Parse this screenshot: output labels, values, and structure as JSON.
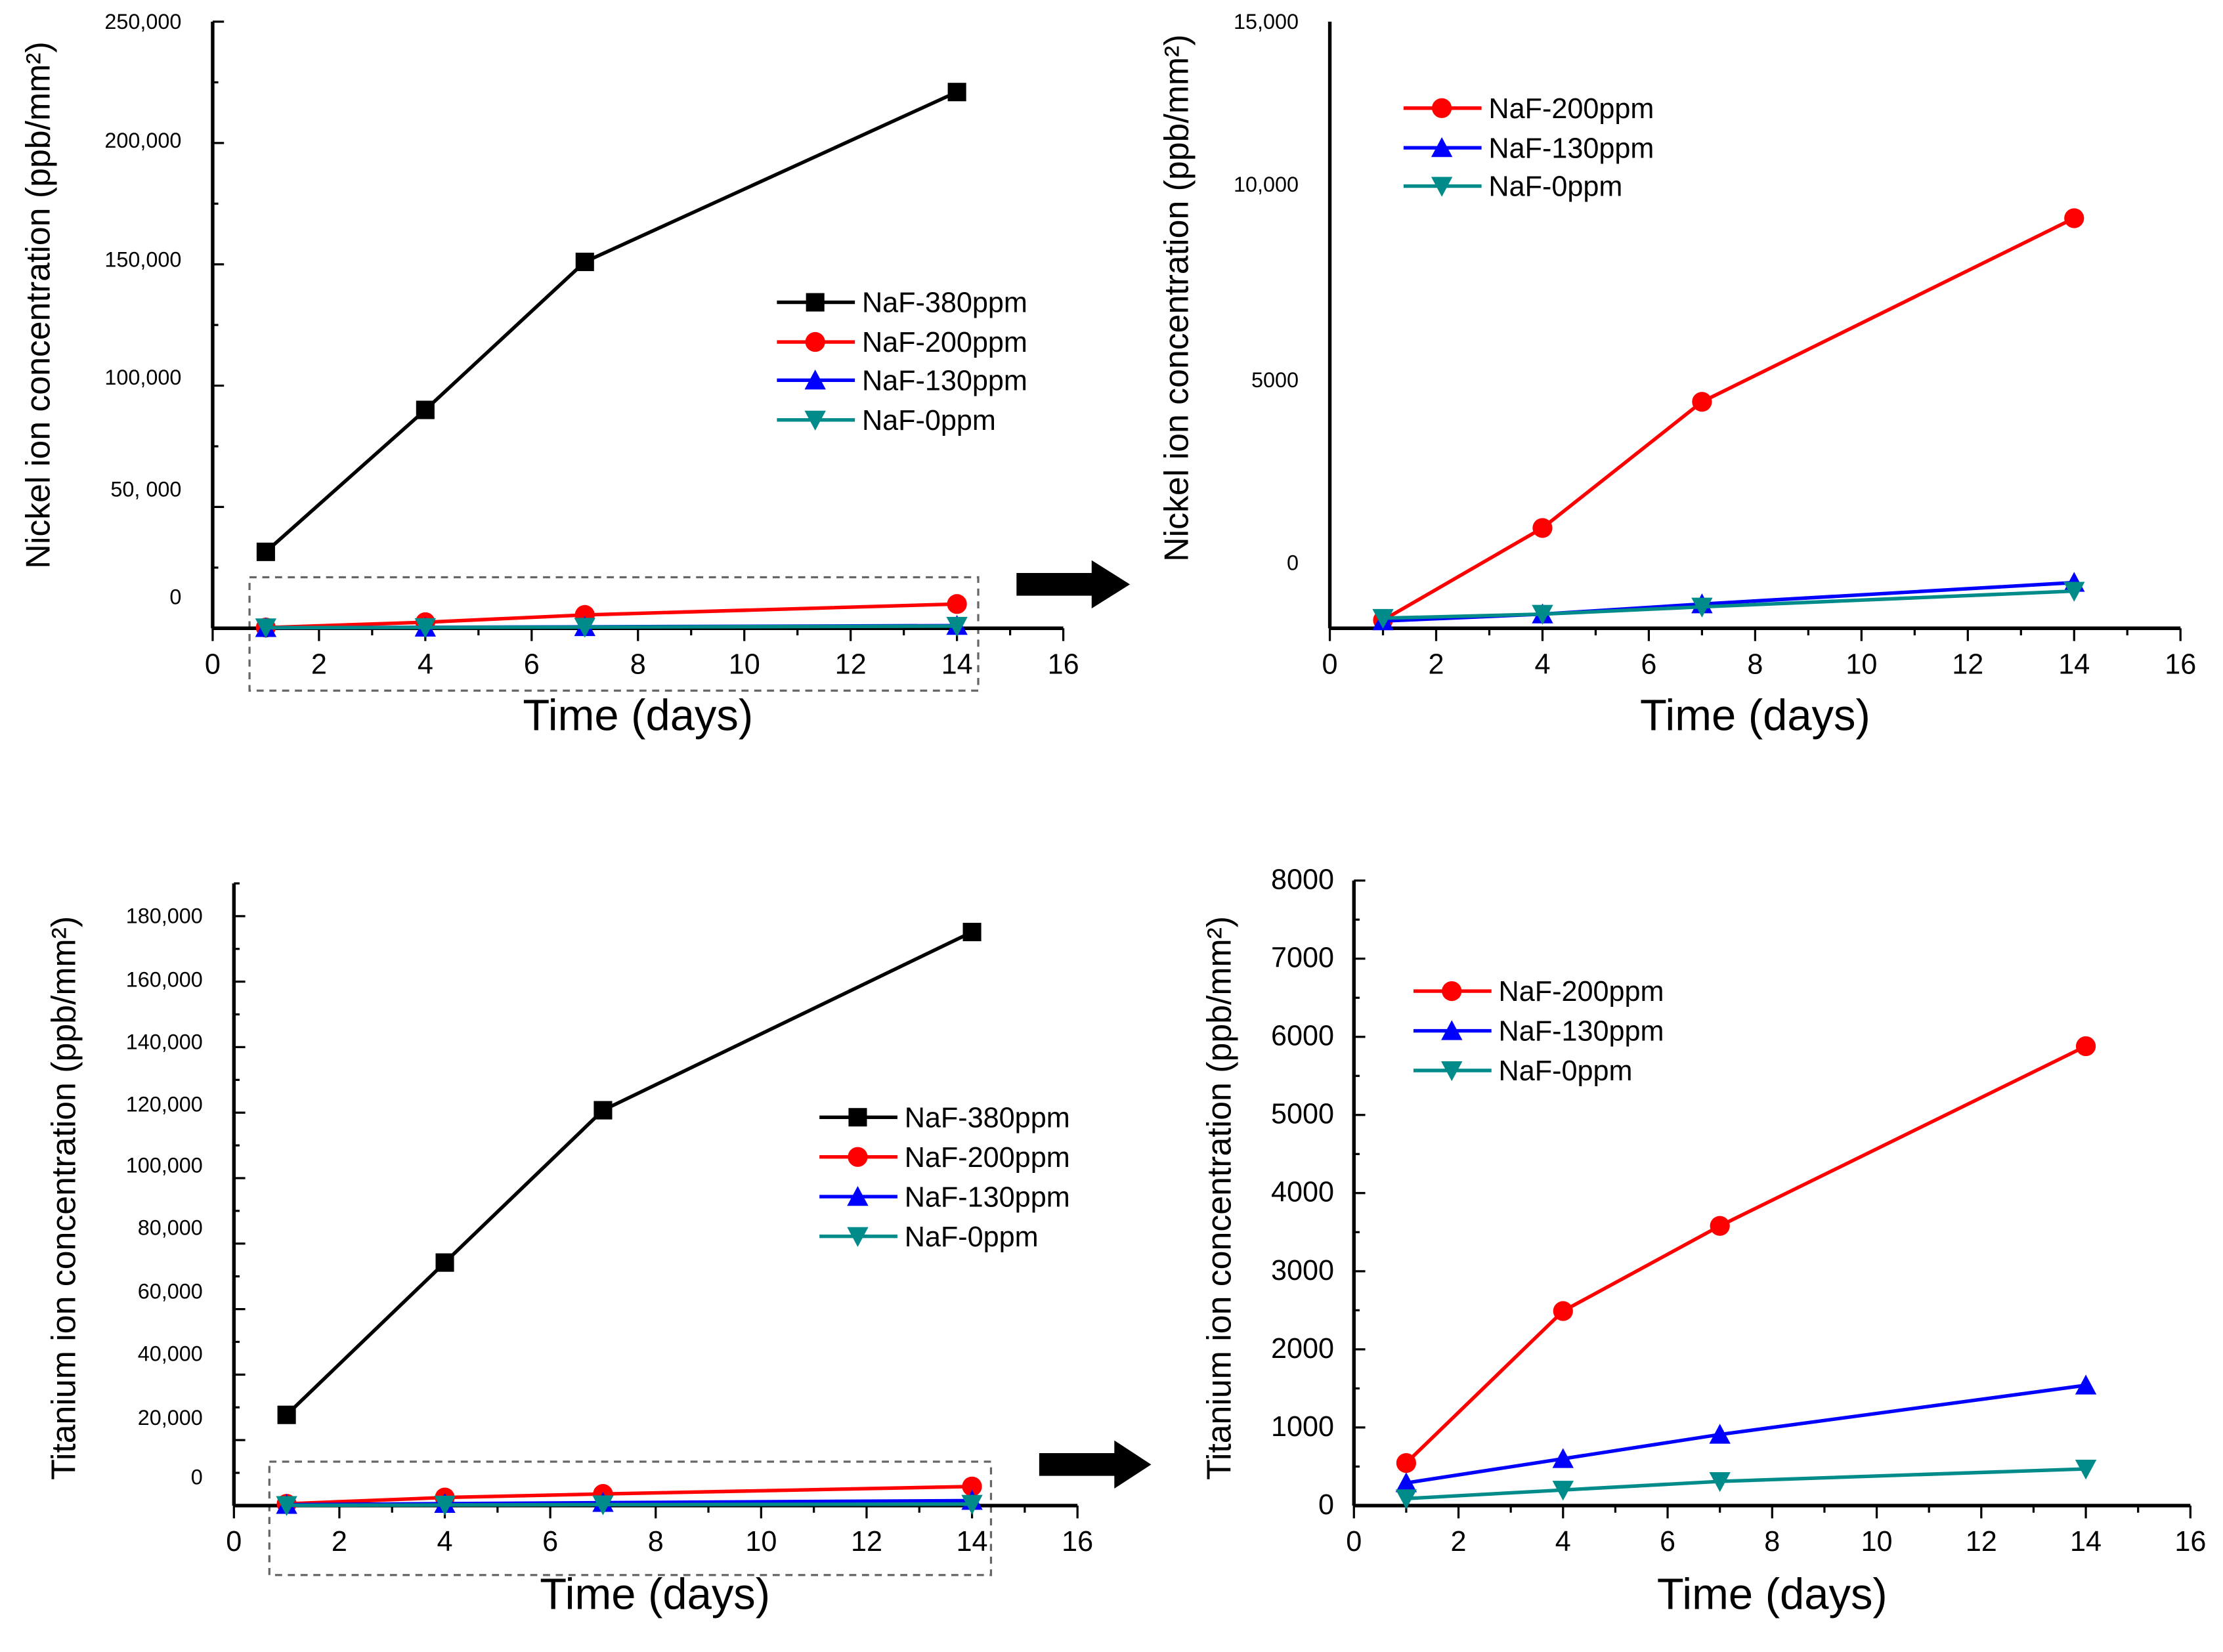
{
  "chart_data": [
    {
      "id": "ni-all",
      "type": "line",
      "xlabel": "Time (days)",
      "ylabel": "Nickel ion concentration (ppb/mm²)",
      "xlim": [
        0,
        16
      ],
      "xticks": [
        "0",
        "2",
        "4",
        "6",
        "8",
        "10",
        "12",
        "14",
        "16"
      ],
      "ylim": [
        0,
        250000
      ],
      "yticks": [
        "0",
        "50, 000",
        "100,000",
        "150,000",
        "200,000",
        "250,000"
      ],
      "grid": false,
      "legend_position": "center-right",
      "x": [
        1,
        4,
        7,
        14
      ],
      "series": [
        {
          "name": "NaF-380ppm",
          "color": "#000000",
          "marker": "square",
          "values": [
            31500,
            90000,
            151000,
            221000
          ]
        },
        {
          "name": "NaF-200ppm",
          "color": "#ff0000",
          "marker": "circle",
          "values": [
            300,
            2500,
            5500,
            10000
          ]
        },
        {
          "name": "NaF-130ppm",
          "color": "#0000ff",
          "marker": "triangle-up",
          "values": [
            200,
            400,
            600,
            1100
          ]
        },
        {
          "name": "NaF-0ppm",
          "color": "#008b8b",
          "marker": "triangle-down",
          "values": [
            250,
            350,
            500,
            900
          ]
        }
      ]
    },
    {
      "id": "ni-zoom",
      "type": "line",
      "xlabel": "Time (days)",
      "ylabel": "Nickel ion concentration (ppb/mm²)",
      "xlim": [
        0,
        16
      ],
      "xticks": [
        "0",
        "2",
        "4",
        "6",
        "8",
        "10",
        "12",
        "14",
        "16"
      ],
      "ylim": [
        0,
        15000
      ],
      "yticks": [
        "0",
        "5000",
        "10,000",
        "15,000"
      ],
      "grid": false,
      "legend_position": "top-left",
      "x": [
        1,
        4,
        7,
        14
      ],
      "series": [
        {
          "name": "NaF-200ppm",
          "color": "#ff0000",
          "marker": "circle",
          "values": [
            200,
            2480,
            5600,
            10140
          ]
        },
        {
          "name": "NaF-130ppm",
          "color": "#0000ff",
          "marker": "triangle-up",
          "values": [
            180,
            350,
            600,
            1130
          ]
        },
        {
          "name": "NaF-0ppm",
          "color": "#008b8b",
          "marker": "triangle-down",
          "values": [
            250,
            350,
            530,
            920
          ]
        }
      ]
    },
    {
      "id": "ti-all",
      "type": "line",
      "xlabel": "Time (days)",
      "ylabel": "Titanium ion concentration (ppb/mm²)",
      "xlim": [
        0,
        16
      ],
      "xticks": [
        "0",
        "2",
        "4",
        "6",
        "8",
        "10",
        "12",
        "14",
        "16"
      ],
      "ylim": [
        0,
        192000
      ],
      "yticks": [
        "0",
        "20,000",
        "40,000",
        "60,000",
        "80,000",
        "100,000",
        "120,000",
        "140,000",
        "160,000",
        "180,000"
      ],
      "grid": false,
      "legend_position": "center-right",
      "x": [
        1,
        4,
        7,
        14
      ],
      "series": [
        {
          "name": "NaF-380ppm",
          "color": "#000000",
          "marker": "square",
          "values": [
            28000,
            75000,
            122000,
            177000
          ]
        },
        {
          "name": "NaF-200ppm",
          "color": "#ff0000",
          "marker": "circle",
          "values": [
            550,
            2500,
            3600,
            5900
          ]
        },
        {
          "name": "NaF-130ppm",
          "color": "#0000ff",
          "marker": "triangle-up",
          "values": [
            300,
            600,
            900,
            1550
          ]
        },
        {
          "name": "NaF-0ppm",
          "color": "#008b8b",
          "marker": "triangle-down",
          "values": [
            90,
            200,
            310,
            470
          ]
        }
      ]
    },
    {
      "id": "ti-zoom",
      "type": "line",
      "xlabel": "Time (days)",
      "ylabel": "Titanium ion concentration (ppb/mm²)",
      "xlim": [
        0,
        16
      ],
      "xticks": [
        "0",
        "2",
        "4",
        "6",
        "8",
        "10",
        "12",
        "14",
        "16"
      ],
      "ylim": [
        0,
        8000
      ],
      "yticks": [
        "0",
        "1000",
        "2000",
        "3000",
        "4000",
        "5000",
        "6000",
        "7000",
        "8000"
      ],
      "grid": false,
      "legend_position": "top-left",
      "x": [
        1,
        4,
        7,
        14
      ],
      "series": [
        {
          "name": "NaF-200ppm",
          "color": "#ff0000",
          "marker": "circle",
          "values": [
            545,
            2490,
            3580,
            5880
          ]
        },
        {
          "name": "NaF-130ppm",
          "color": "#0000ff",
          "marker": "triangle-up",
          "values": [
            290,
            600,
            910,
            1540
          ]
        },
        {
          "name": "NaF-0ppm",
          "color": "#008b8b",
          "marker": "triangle-down",
          "values": [
            90,
            200,
            310,
            470
          ]
        }
      ]
    }
  ]
}
